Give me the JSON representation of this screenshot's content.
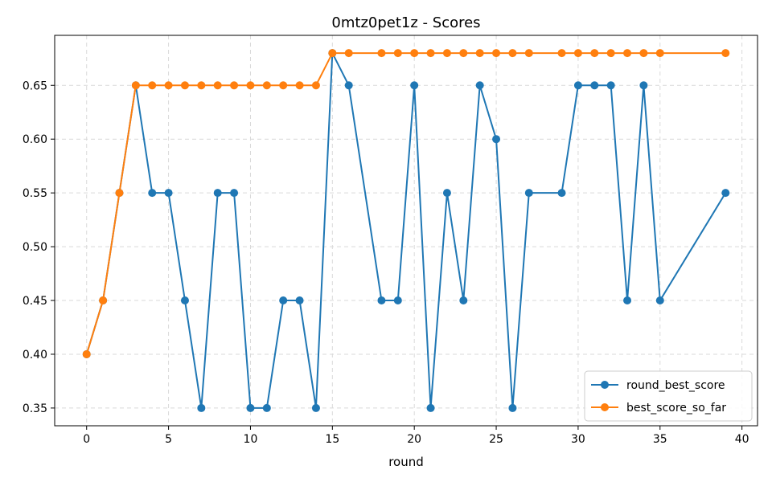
{
  "chart_data": {
    "type": "line",
    "title": "0mtz0pet1z - Scores",
    "xlabel": "round",
    "ylabel": "",
    "xlim": [
      -1.95,
      40.95
    ],
    "ylim": [
      0.3335,
      0.6965
    ],
    "xticks": [
      0,
      5,
      10,
      15,
      20,
      25,
      30,
      35,
      40
    ],
    "yticks": [
      0.35,
      0.4,
      0.45,
      0.5,
      0.55,
      0.6,
      0.65
    ],
    "ytick_labels": [
      "0.35",
      "0.40",
      "0.45",
      "0.50",
      "0.55",
      "0.60",
      "0.65"
    ],
    "grid": true,
    "legend_position": "lower-right",
    "series": [
      {
        "name": "round_best_score",
        "color": "#1f77b4",
        "x": [
          0,
          1,
          2,
          3,
          4,
          5,
          6,
          7,
          8,
          9,
          10,
          11,
          12,
          13,
          14,
          15,
          16,
          18,
          19,
          20,
          21,
          22,
          23,
          24,
          25,
          26,
          27,
          29,
          30,
          31,
          32,
          33,
          34,
          35,
          39
        ],
        "y": [
          0.4,
          0.45,
          0.55,
          0.65,
          0.55,
          0.55,
          0.45,
          0.35,
          0.55,
          0.55,
          0.35,
          0.35,
          0.45,
          0.45,
          0.35,
          0.68,
          0.65,
          0.45,
          0.45,
          0.65,
          0.35,
          0.55,
          0.45,
          0.65,
          0.6,
          0.35,
          0.55,
          0.55,
          0.65,
          0.65,
          0.65,
          0.45,
          0.65,
          0.45,
          0.55
        ]
      },
      {
        "name": "best_score_so_far",
        "color": "#ff7f0e",
        "x": [
          0,
          1,
          2,
          3,
          4,
          5,
          6,
          7,
          8,
          9,
          10,
          11,
          12,
          13,
          14,
          15,
          16,
          18,
          19,
          20,
          21,
          22,
          23,
          24,
          25,
          26,
          27,
          29,
          30,
          31,
          32,
          33,
          34,
          35,
          39
        ],
        "y": [
          0.4,
          0.45,
          0.55,
          0.65,
          0.65,
          0.65,
          0.65,
          0.65,
          0.65,
          0.65,
          0.65,
          0.65,
          0.65,
          0.65,
          0.65,
          0.68,
          0.68,
          0.68,
          0.68,
          0.68,
          0.68,
          0.68,
          0.68,
          0.68,
          0.68,
          0.68,
          0.68,
          0.68,
          0.68,
          0.68,
          0.68,
          0.68,
          0.68,
          0.68,
          0.68
        ]
      }
    ]
  }
}
